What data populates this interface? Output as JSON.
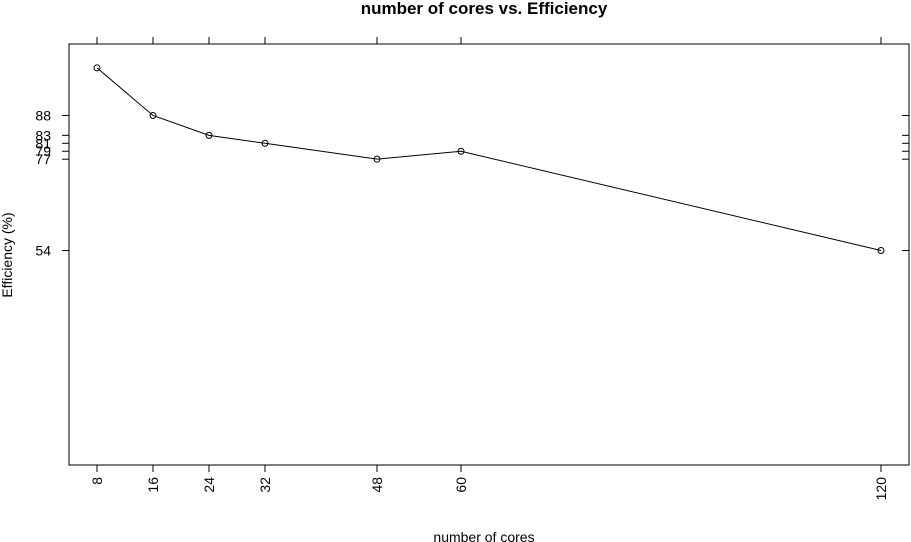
{
  "chart_data": {
    "type": "line",
    "title": "number of cores vs. Efficiency",
    "xlabel": "number of cores",
    "ylabel": "Efficiency (%)",
    "x_ticks": [
      8,
      16,
      24,
      32,
      48,
      60,
      120
    ],
    "y_ticks": [
      88,
      83,
      81,
      79,
      77,
      54
    ],
    "y_tick_labels": [
      "88",
      "83",
      "81",
      "79",
      "77",
      "54"
    ],
    "xlim": [
      4,
      124
    ],
    "ylim": [
      0,
      106
    ],
    "grid": false,
    "legend": false,
    "series": [
      {
        "x": [
          8,
          16,
          24,
          32,
          48,
          60,
          120
        ],
        "y": [
          100,
          88,
          83,
          81,
          77,
          79,
          54
        ]
      }
    ]
  }
}
